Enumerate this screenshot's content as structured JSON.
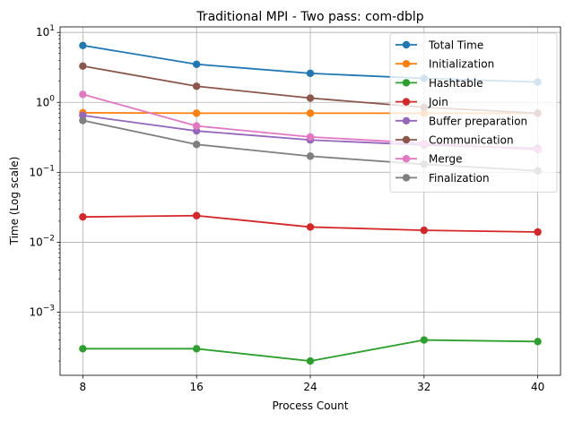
{
  "chart_data": {
    "type": "line",
    "title": "Traditional MPI - Two pass: com-dblp",
    "xlabel": "Process Count",
    "ylabel": "Time (Log scale)",
    "x": [
      8,
      16,
      24,
      32,
      40
    ],
    "x_ticks": [
      "8",
      "16",
      "24",
      "32",
      "40"
    ],
    "y_scale": "log",
    "ylim": [
      0.000125,
      12
    ],
    "y_ticks": [
      {
        "value": 0.001,
        "base": "10",
        "exp": "−3"
      },
      {
        "value": 0.01,
        "base": "10",
        "exp": "−2"
      },
      {
        "value": 0.1,
        "base": "10",
        "exp": "−1"
      },
      {
        "value": 1,
        "base": "10",
        "exp": "0"
      },
      {
        "value": 10,
        "base": "10",
        "exp": "1"
      }
    ],
    "grid": true,
    "legend_position": "top-right",
    "series": [
      {
        "name": "Total Time",
        "color": "#1f77b4",
        "values": [
          6.5,
          3.5,
          2.6,
          2.2,
          1.95
        ]
      },
      {
        "name": "Initialization",
        "color": "#ff7f0e",
        "values": [
          0.71,
          0.7,
          0.7,
          0.7,
          0.7
        ]
      },
      {
        "name": "Hashtable",
        "color": "#2ca02c",
        "values": [
          0.0003,
          0.0003,
          0.0002,
          0.0004,
          0.00038
        ]
      },
      {
        "name": "Join",
        "color": "#d62728",
        "values": [
          0.023,
          0.024,
          0.0165,
          0.0148,
          0.014
        ]
      },
      {
        "name": "Buffer preparation",
        "color": "#9467bd",
        "values": [
          0.65,
          0.39,
          0.29,
          0.245,
          0.22
        ]
      },
      {
        "name": "Communication",
        "color": "#8c564b",
        "values": [
          3.3,
          1.7,
          1.15,
          0.85,
          0.7
        ]
      },
      {
        "name": "Merge",
        "color": "#e377c2",
        "values": [
          1.3,
          0.46,
          0.32,
          0.26,
          0.21
        ]
      },
      {
        "name": "Finalization",
        "color": "#7f7f7f",
        "values": [
          0.55,
          0.25,
          0.17,
          0.13,
          0.105
        ]
      }
    ]
  }
}
